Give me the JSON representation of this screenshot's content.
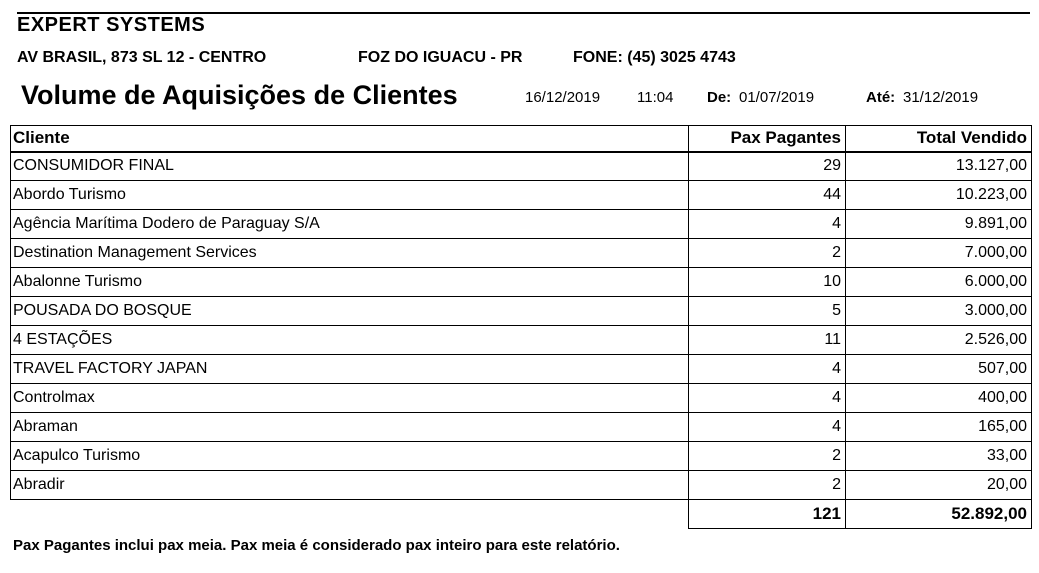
{
  "header": {
    "company": "EXPERT SYSTEMS",
    "address": "AV BRASIL, 873 SL 12 - CENTRO",
    "city": "FOZ DO IGUACU - PR",
    "phone_label": "FONE:",
    "phone": "(45) 3025 4743"
  },
  "report": {
    "title": "Volume de Aquisições de Clientes",
    "print_date": "16/12/2019",
    "print_time": "11:04",
    "from_label": "De:",
    "from_date": "01/07/2019",
    "to_label": "Até:",
    "to_date": "31/12/2019"
  },
  "table": {
    "columns": [
      "Cliente",
      "Pax Pagantes",
      "Total Vendido"
    ],
    "rows": [
      {
        "cliente": "CONSUMIDOR FINAL",
        "pax": "29",
        "total": "13.127,00"
      },
      {
        "cliente": "Abordo Turismo",
        "pax": "44",
        "total": "10.223,00"
      },
      {
        "cliente": "Agência Marítima Dodero de Paraguay S/A",
        "pax": "4",
        "total": "9.891,00"
      },
      {
        "cliente": "Destination Management Services",
        "pax": "2",
        "total": "7.000,00"
      },
      {
        "cliente": "Abalonne Turismo",
        "pax": "10",
        "total": "6.000,00"
      },
      {
        "cliente": "POUSADA DO BOSQUE",
        "pax": "5",
        "total": "3.000,00"
      },
      {
        "cliente": "4 ESTAÇÕES",
        "pax": "11",
        "total": "2.526,00"
      },
      {
        "cliente": "TRAVEL FACTORY JAPAN",
        "pax": "4",
        "total": "507,00"
      },
      {
        "cliente": "Controlmax",
        "pax": "4",
        "total": "400,00"
      },
      {
        "cliente": "Abraman",
        "pax": "4",
        "total": "165,00"
      },
      {
        "cliente": "Acapulco Turismo",
        "pax": "2",
        "total": "33,00"
      },
      {
        "cliente": "Abradir",
        "pax": "2",
        "total": "20,00"
      }
    ],
    "totals": {
      "pax": "121",
      "total": "52.892,00"
    }
  },
  "footer": {
    "note": "Pax Pagantes inclui pax meia. Pax meia é considerado pax inteiro para este relatório."
  },
  "colors": {
    "text": "#000000",
    "background": "#ffffff",
    "border": "#000000"
  }
}
